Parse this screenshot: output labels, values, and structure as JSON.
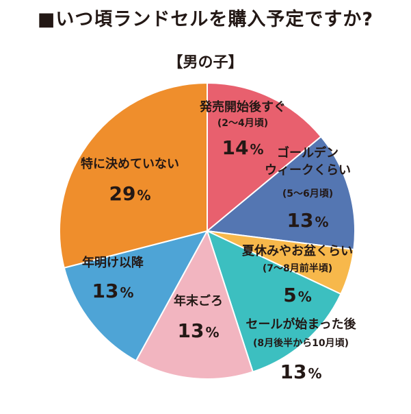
{
  "chart_data": {
    "type": "pie",
    "title": "■いつ頃ランドセルを購入予定ですか?",
    "subtitle": "【男の子】",
    "start_angle_deg": 0,
    "direction": "clockwise",
    "slices": [
      {
        "label": "発売開始後すぐ",
        "sublabel": "(2〜4月頃)",
        "value": 14,
        "display": "14",
        "color": "#E8606E"
      },
      {
        "label": "ゴールデン ウィークくらい",
        "sublabel": "(5〜6月頃)",
        "value": 13,
        "display": "13",
        "color": "#5476B2"
      },
      {
        "label": "夏休みやお盆くらい",
        "sublabel": "(7〜8月前半頃)",
        "value": 5,
        "display": "5",
        "color": "#F7B84B"
      },
      {
        "label": "セールが始まった後",
        "sublabel": "(8月後半から10月頃)",
        "value": 13,
        "display": "13",
        "color": "#3CBFC0"
      },
      {
        "label": "年末ごろ",
        "sublabel": "",
        "value": 13,
        "display": "13",
        "color": "#F2B5C0"
      },
      {
        "label": "年明け以降",
        "sublabel": "",
        "value": 13,
        "display": "13",
        "color": "#4EA4D6"
      },
      {
        "label": "特に決めていない",
        "sublabel": "",
        "value": 29,
        "display": "29",
        "color": "#EF8E2C"
      }
    ],
    "percent_sign": "%"
  }
}
